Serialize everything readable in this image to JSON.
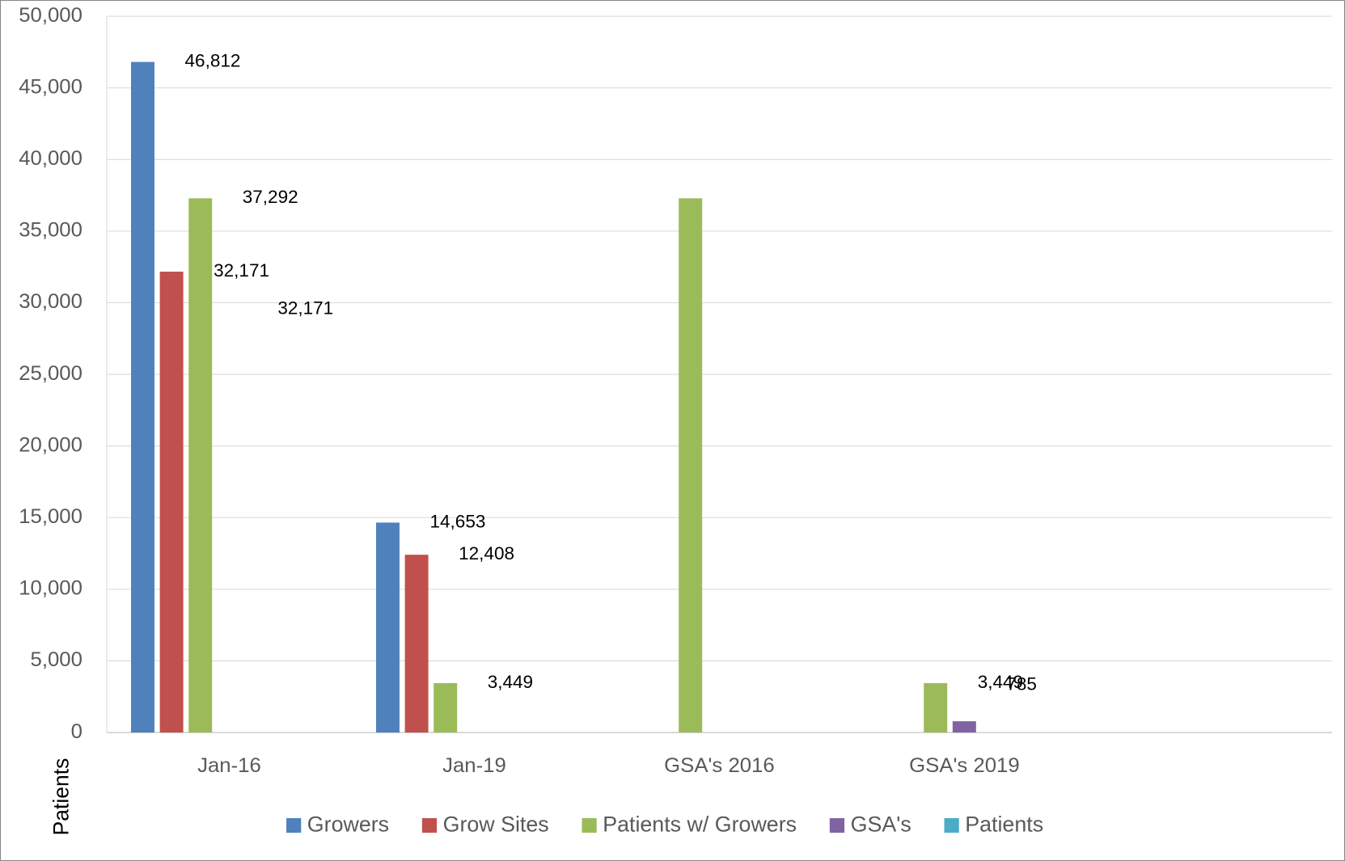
{
  "chart_data": {
    "type": "bar",
    "y_label": "Patients",
    "categories": [
      "Jan-16",
      "Jan-19",
      "GSA's 2016",
      "GSA's 2019",
      null
    ],
    "series": [
      {
        "name": "Growers",
        "color": "#4f81bd",
        "values": [
          46812,
          14653,
          null,
          null,
          null
        ],
        "value_labels": [
          "46,812",
          "14,653",
          null,
          null,
          null
        ]
      },
      {
        "name": "Grow Sites",
        "color": "#c0504d",
        "values": [
          32171,
          12408,
          null,
          null,
          null
        ],
        "value_labels": [
          "32,171",
          "12,408",
          null,
          null,
          null
        ]
      },
      {
        "name": "Patients w/ Growers",
        "color": "#9bbb59",
        "values": [
          37292,
          3449,
          37292,
          3449,
          null
        ],
        "value_labels": [
          "37,292",
          "3,449",
          null,
          "3,449",
          null
        ]
      },
      {
        "name": "GSA's",
        "color": "#8064a2",
        "values": [
          null,
          null,
          null,
          785,
          null
        ],
        "value_labels": [
          null,
          null,
          null,
          "785",
          null
        ]
      },
      {
        "name": "Patients",
        "color": "#4bacc6",
        "values": [
          null,
          null,
          null,
          null,
          null
        ]
      }
    ],
    "annotations": [
      "32,171"
    ],
    "ylim": [
      0,
      50000
    ],
    "yticks": [
      {
        "value": 0,
        "label": "0"
      },
      {
        "value": 5000,
        "label": "5,000"
      },
      {
        "value": 10000,
        "label": "10,000"
      },
      {
        "value": 15000,
        "label": "15,000"
      },
      {
        "value": 20000,
        "label": "20,000"
      },
      {
        "value": 25000,
        "label": "25,000"
      },
      {
        "value": 30000,
        "label": "30,000"
      },
      {
        "value": 35000,
        "label": "35,000"
      },
      {
        "value": 40000,
        "label": "40,000"
      },
      {
        "value": 45000,
        "label": "45,000"
      },
      {
        "value": 50000,
        "label": "50,000"
      }
    ],
    "grid": true,
    "legend": "bottom"
  }
}
